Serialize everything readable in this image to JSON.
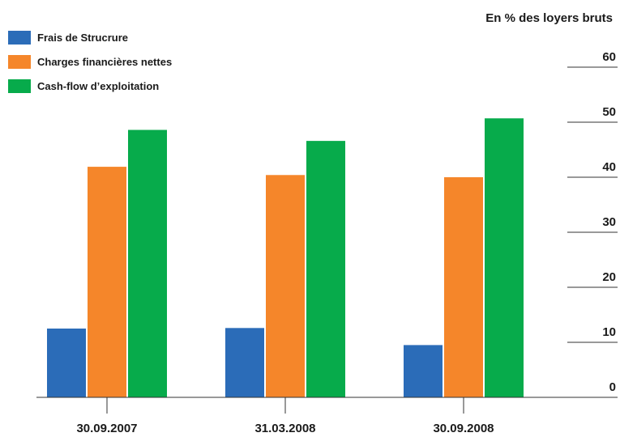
{
  "chart_data": {
    "type": "bar",
    "title": "",
    "ylabel": "En % des loyers bruts",
    "xlabel": "",
    "categories": [
      "30.09.2007",
      "31.03.2008",
      "30.09.2008"
    ],
    "series": [
      {
        "name": "Frais de Strucrure",
        "color": "#2b6cb8",
        "values": [
          12.5,
          12.6,
          9.5
        ]
      },
      {
        "name": "Charges financières nettes",
        "color": "#f5862a",
        "values": [
          41.9,
          40.4,
          40.0
        ]
      },
      {
        "name": "Cash-flow d’exploitation",
        "color": "#07ab4b",
        "values": [
          48.6,
          46.6,
          50.7
        ]
      }
    ],
    "yticks": [
      0,
      10,
      20,
      30,
      40,
      50,
      60
    ],
    "ylim": [
      0,
      60
    ],
    "legend_position": "top-left",
    "grid": false
  }
}
